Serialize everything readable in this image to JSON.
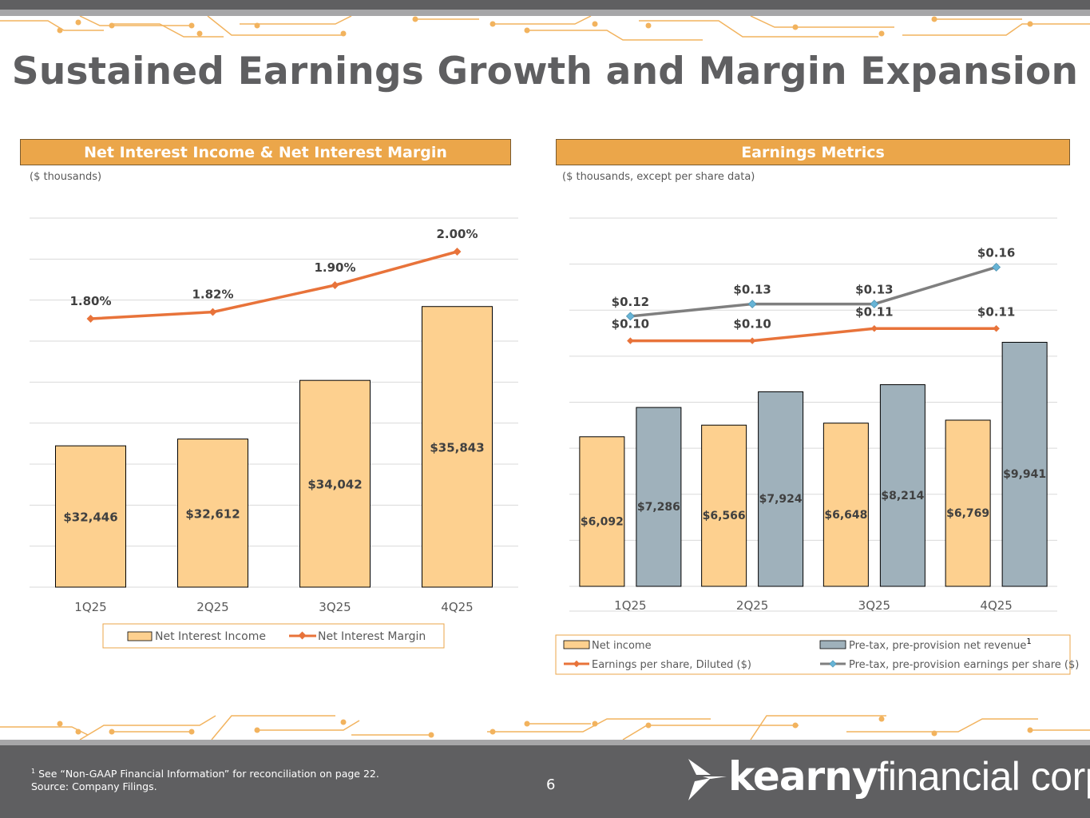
{
  "page": {
    "title": "Sustained Earnings Growth and Margin Expansion",
    "page_number": "6",
    "footnote_line1": "See “Non-GAAP Financial Information” for reconciliation on page 22.",
    "footnote_marker": "1",
    "footnote_line2": "Source: Company Filings.",
    "logo_bold": "kearny",
    "logo_light": "financial corp."
  },
  "colors": {
    "orange_bar": "#fdd08f",
    "gray_bar": "#9fb1bb",
    "orange_line": "#e8733a",
    "gray_line": "#7f7f7f",
    "header": "#eba64a",
    "teal_marker": "#67b4d6"
  },
  "chart_data": [
    {
      "type": "bar",
      "panel_title": "Net Interest Income & Net Interest Margin",
      "units_note": "($ thousands)",
      "categories": [
        "1Q25",
        "2Q25",
        "3Q25",
        "4Q25"
      ],
      "series": [
        {
          "name": "Net Interest Income",
          "kind": "bar",
          "values": [
            32446,
            32612,
            34042,
            35843
          ],
          "labels": [
            "$32,446",
            "$32,612",
            "$34,042",
            "$35,843"
          ]
        },
        {
          "name": "Net Interest Margin",
          "kind": "line",
          "values": [
            1.8,
            1.82,
            1.9,
            2.0
          ],
          "labels": [
            "1.80%",
            "1.82%",
            "1.90%",
            "2.00%"
          ]
        }
      ],
      "ylim_bar": [
        29000,
        38000
      ],
      "ylim_line": [
        1.0,
        2.1
      ],
      "grid": true,
      "legend": "bottom"
    },
    {
      "type": "bar",
      "panel_title": "Earnings Metrics",
      "units_note": "($ thousands, except per share data)",
      "categories": [
        "1Q25",
        "2Q25",
        "3Q25",
        "4Q25"
      ],
      "series": [
        {
          "name": "Net income",
          "kind": "bar",
          "values": [
            6092,
            6566,
            6648,
            6769
          ],
          "labels": [
            "$6,092",
            "$6,566",
            "$6,648",
            "$6,769"
          ]
        },
        {
          "name": "Pre-tax, pre-provision net revenue",
          "superscript": "1",
          "kind": "bar",
          "values": [
            7286,
            7924,
            8214,
            9941
          ],
          "labels": [
            "$7,286",
            "$7,924",
            "$8,214",
            "$9,941"
          ]
        },
        {
          "name": "Earnings per share, Diluted ($)",
          "kind": "line",
          "values": [
            0.1,
            0.1,
            0.11,
            0.11
          ],
          "labels": [
            "$0.10",
            "$0.10",
            "$0.11",
            "$0.11"
          ]
        },
        {
          "name": "Pre-tax, pre-provision earnings per share ($)",
          "kind": "line",
          "values": [
            0.12,
            0.13,
            0.13,
            0.16
          ],
          "labels": [
            "$0.12",
            "$0.13",
            "$0.13",
            "$0.16"
          ]
        }
      ],
      "ylim_bar": [
        0,
        15000
      ],
      "ylim_line": [
        -0.1,
        0.2
      ],
      "grid": true,
      "legend": "bottom"
    }
  ]
}
